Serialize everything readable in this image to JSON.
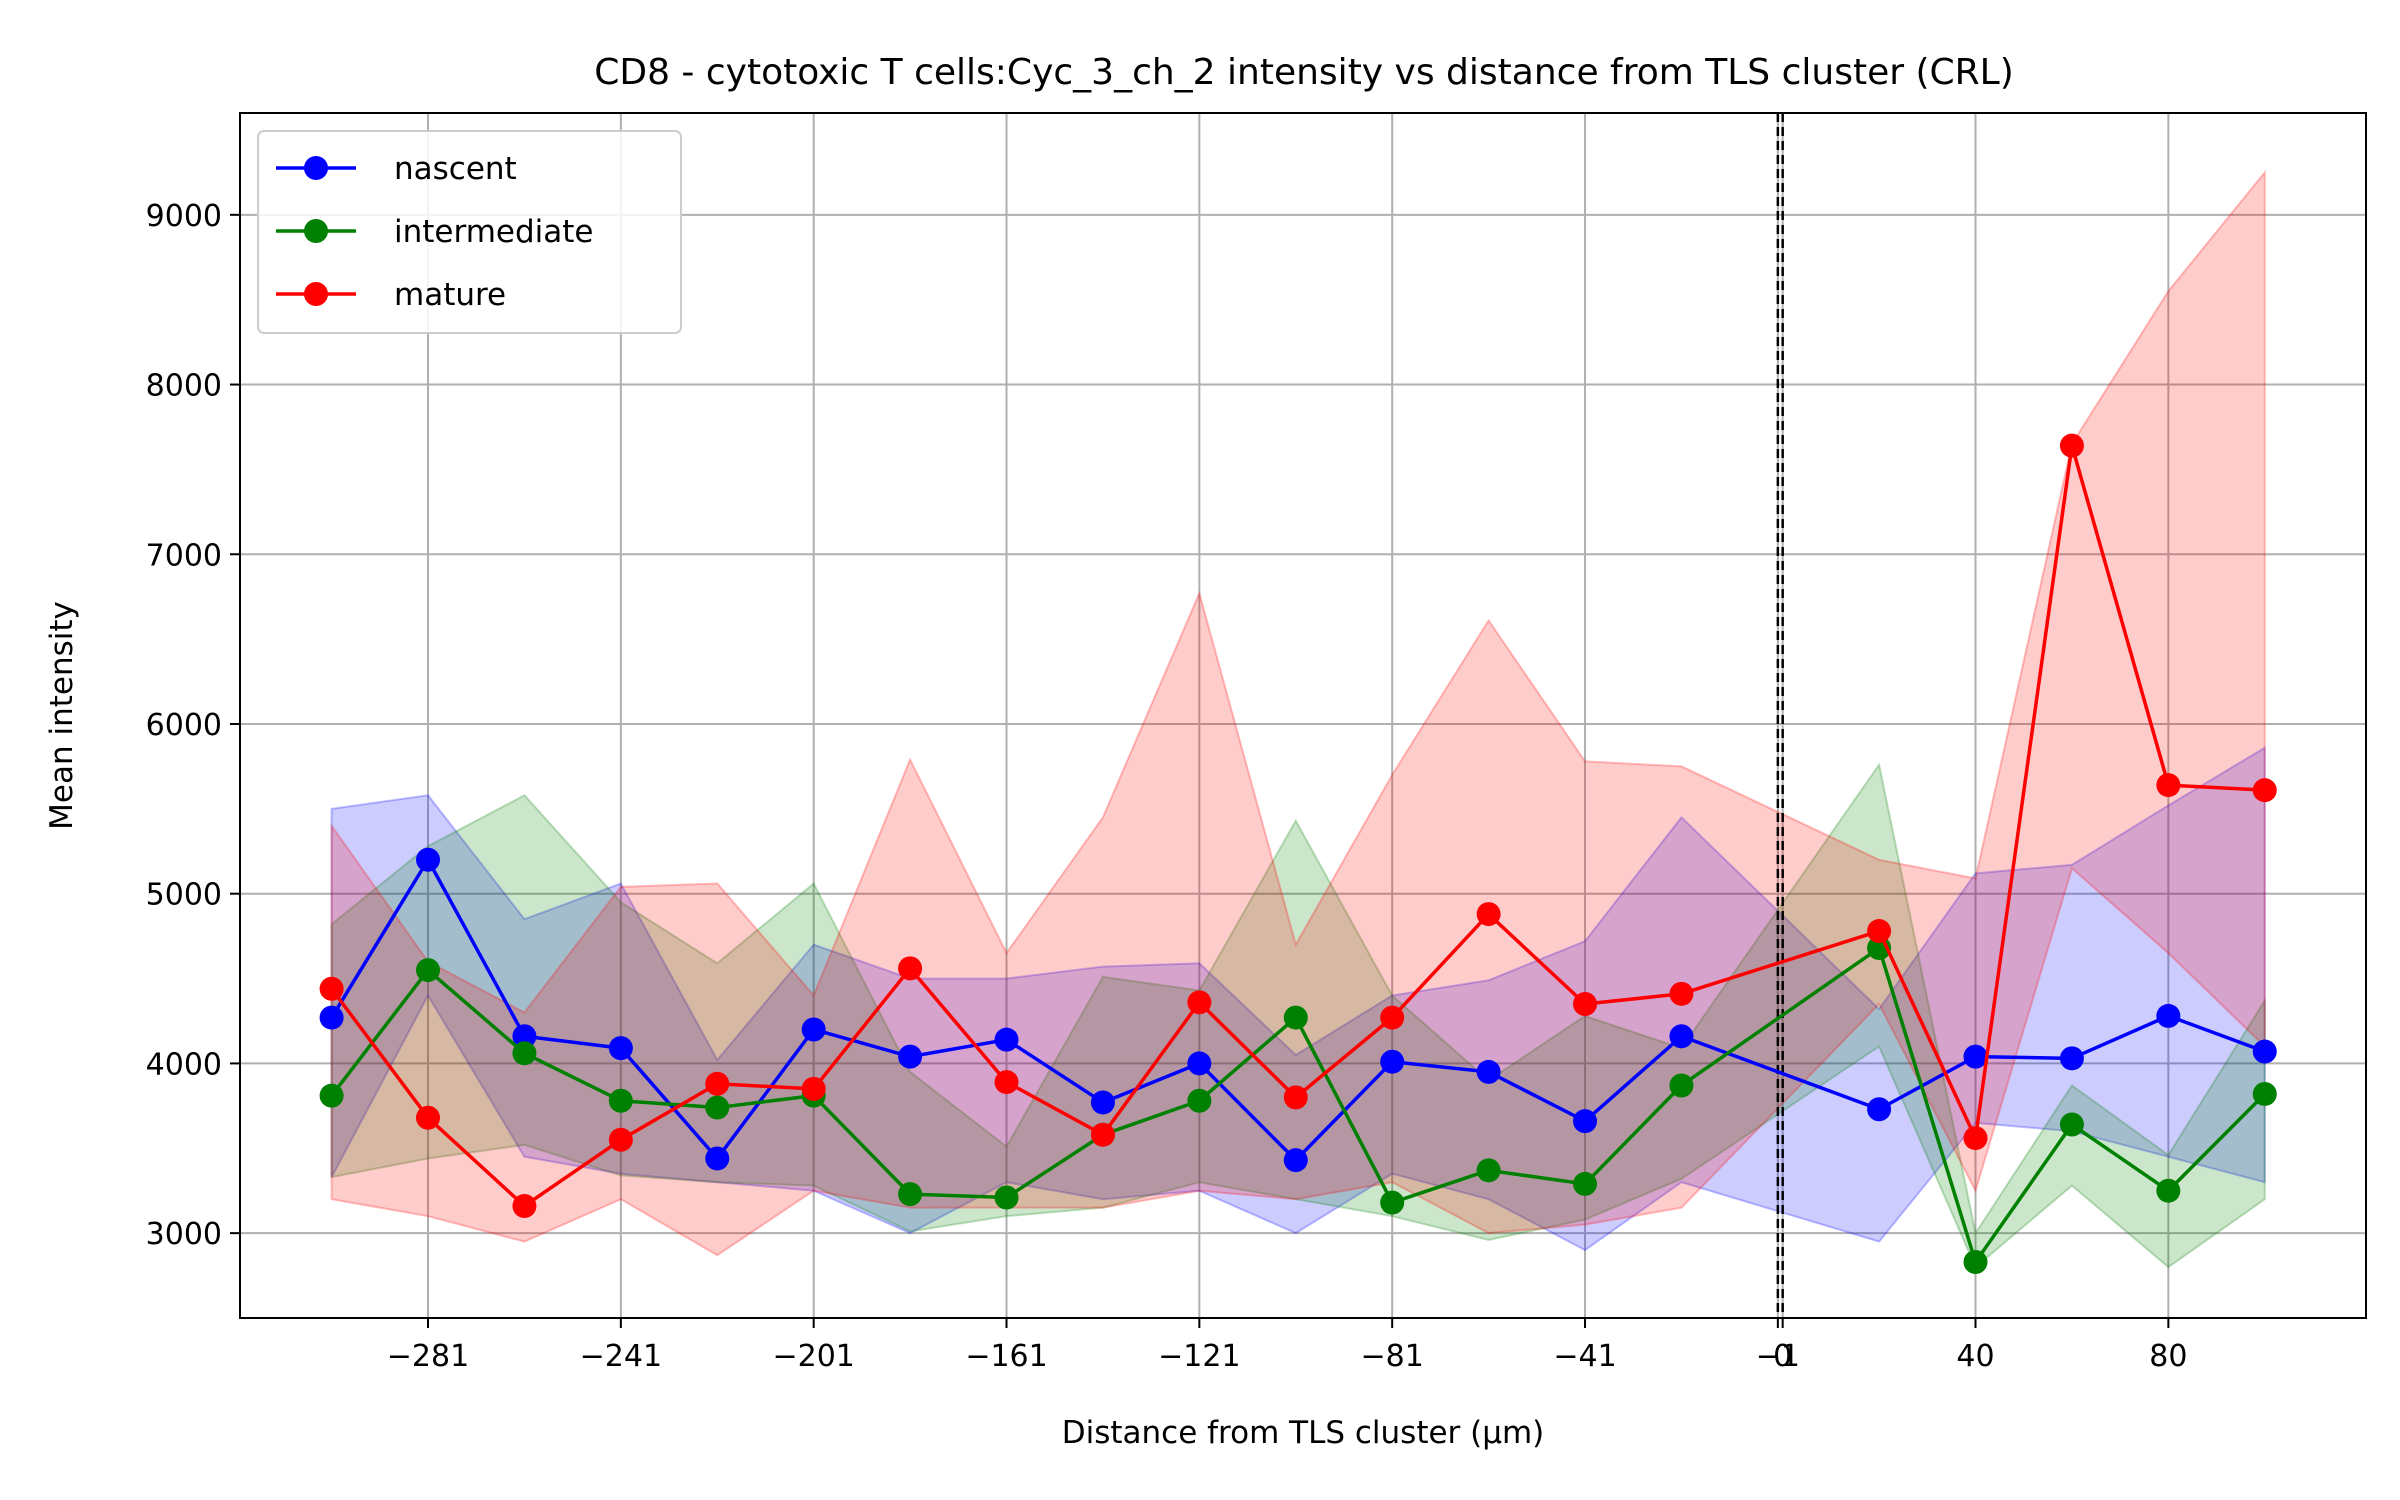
{
  "chart_data": {
    "type": "line",
    "title": "CD8 - cytotoxic T cells:Cyc_3_ch_2 intensity vs distance from TLS cluster (CRL)",
    "xlabel": "Distance from TLS cluster (μm)",
    "ylabel": "Mean intensity",
    "xlim": [
      -320,
      121
    ],
    "ylim": [
      2500,
      9600
    ],
    "grid": true,
    "legend_position": "top-left",
    "x": [
      -301,
      -281,
      -261,
      -241,
      -221,
      -201,
      -181,
      -161,
      -141,
      -121,
      -101,
      -81,
      -61,
      -41,
      -21,
      20,
      40,
      60,
      80,
      100
    ],
    "x_ticks": [
      -281,
      -241,
      -201,
      -161,
      -121,
      -81,
      -41,
      -1,
      0,
      40,
      80
    ],
    "x_tick_labels": [
      "−281",
      "−241",
      "−201",
      "−161",
      "−121",
      "−81",
      "−41",
      "−1",
      "0",
      "40",
      "80"
    ],
    "y_ticks": [
      3000,
      4000,
      5000,
      6000,
      7000,
      8000,
      9000
    ],
    "y_tick_labels": [
      "3000",
      "4000",
      "5000",
      "6000",
      "7000",
      "8000",
      "9000"
    ],
    "reference_lines": [
      -1,
      0
    ],
    "series": [
      {
        "name": "nascent",
        "color": "#0000ff",
        "values": [
          4270,
          5200,
          4160,
          4090,
          3440,
          4200,
          4040,
          4140,
          3770,
          4000,
          3430,
          4010,
          3950,
          3660,
          4160,
          3730,
          4040,
          4030,
          4280,
          4070
        ],
        "lower": [
          3330,
          4400,
          3450,
          3350,
          3300,
          3250,
          3000,
          3300,
          3200,
          3250,
          3000,
          3350,
          3200,
          2900,
          3300,
          2950,
          3650,
          3600,
          3450,
          3300
        ],
        "upper": [
          5500,
          5580,
          4850,
          5060,
          4020,
          4700,
          4500,
          4500,
          4570,
          4590,
          4050,
          4400,
          4490,
          4720,
          5450,
          4320,
          5120,
          5170,
          5520,
          5860
        ]
      },
      {
        "name": "intermediate",
        "color": "#008000",
        "values": [
          3810,
          4550,
          4060,
          3780,
          3740,
          3810,
          3230,
          3210,
          3580,
          3780,
          4270,
          3180,
          3370,
          3290,
          3870,
          4680,
          2830,
          3640,
          3250,
          3820
        ]
      },
      {
        "name": "mature",
        "color": "#ff0000",
        "values": [
          4440,
          3680,
          3160,
          3550,
          3880,
          3850,
          4560,
          3890,
          3580,
          4360,
          3800,
          4270,
          4880,
          4350,
          4410,
          4780,
          3560,
          7640,
          5640,
          5610
        ],
        "lower": [
          3200,
          3100,
          2950,
          3200,
          2870,
          3250,
          3150,
          3150,
          3150,
          3250,
          3200,
          3300,
          3000,
          3050,
          3150,
          4350,
          3250,
          5150,
          4650,
          4100
        ],
        "upper": [
          5400,
          4600,
          4300,
          5040,
          5060,
          4400,
          5790,
          4650,
          5450,
          6770,
          4700,
          5700,
          6610,
          5780,
          5750,
          5200,
          5090,
          7650,
          8550,
          9250
        ]
      }
    ],
    "intermediate_band": {
      "lower": [
        3330,
        3440,
        3520,
        3340,
        3300,
        3280,
        3010,
        3100,
        3150,
        3300,
        3200,
        3100,
        2960,
        3080,
        3320,
        4100,
        2800,
        3280,
        2800,
        3200
      ],
      "upper": [
        4820,
        5280,
        5580,
        4950,
        4590,
        5060,
        3950,
        3510,
        4510,
        4430,
        5430,
        4400,
        3900,
        4280,
        4090,
        5760,
        3000,
        3870,
        3460,
        4370
      ]
    }
  }
}
